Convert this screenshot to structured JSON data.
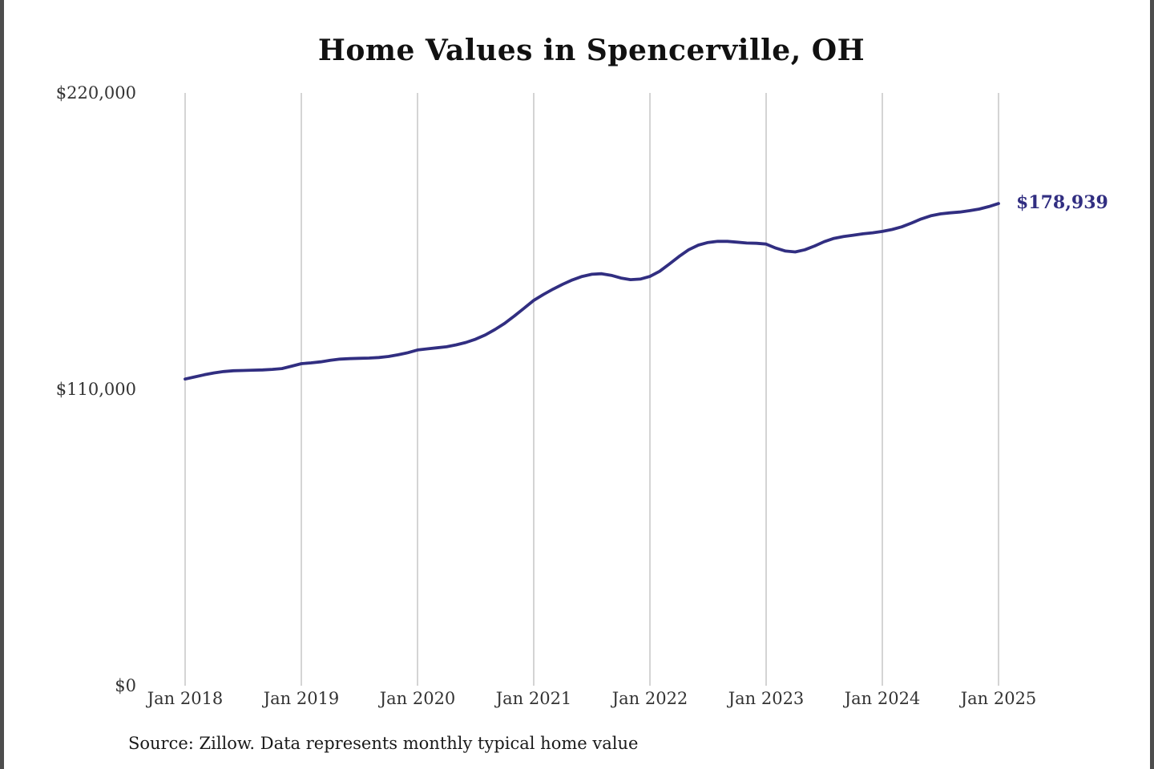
{
  "page": {
    "title": "Home Values in Spencerville, OH",
    "source_note": "Source: Zillow. Data represents monthly typical home value"
  },
  "colors": {
    "line": "#312e81",
    "gridline": "#c9c9c9",
    "axis_text": "#333333",
    "title_text": "#111111",
    "end_label": "#312e81",
    "edge_bar": "#4d4d4d"
  },
  "chart_data": {
    "type": "line",
    "title": "Home Values in Spencerville, OH",
    "xlabel": "",
    "ylabel": "",
    "ylim": [
      0,
      220000
    ],
    "grid": "vertical-only",
    "legend": false,
    "frequency": "monthly",
    "x_start": "Jan 2018",
    "x_end": "Jan 2025",
    "x_tick_labels": [
      "Jan 2018",
      "Jan 2019",
      "Jan 2020",
      "Jan 2021",
      "Jan 2022",
      "Jan 2023",
      "Jan 2024",
      "Jan 2025"
    ],
    "y_ticks": [
      {
        "value": 0,
        "label": "$0"
      },
      {
        "value": 110000,
        "label": "$110,000"
      },
      {
        "value": 220000,
        "label": "$220,000"
      }
    ],
    "end_label": "$178,939",
    "final_value": 178939,
    "series_name": "Typical home value",
    "values": [
      113800,
      114600,
      115400,
      116100,
      116600,
      116900,
      117000,
      117100,
      117200,
      117400,
      117700,
      118600,
      119500,
      119800,
      120200,
      120800,
      121200,
      121400,
      121500,
      121600,
      121800,
      122200,
      122800,
      123600,
      124600,
      125000,
      125400,
      125800,
      126500,
      127400,
      128600,
      130200,
      132200,
      134500,
      137200,
      140100,
      143000,
      145200,
      147200,
      149000,
      150600,
      151900,
      152700,
      152900,
      152300,
      151300,
      150700,
      150900,
      151900,
      153800,
      156500,
      159300,
      161800,
      163500,
      164500,
      164900,
      164900,
      164600,
      164300,
      164200,
      163900,
      162400,
      161300,
      161000,
      161800,
      163200,
      164800,
      166000,
      166700,
      167200,
      167700,
      168100,
      168600,
      169300,
      170300,
      171700,
      173200,
      174400,
      175100,
      175500,
      175800,
      176300,
      176900,
      177800,
      178939
    ]
  }
}
